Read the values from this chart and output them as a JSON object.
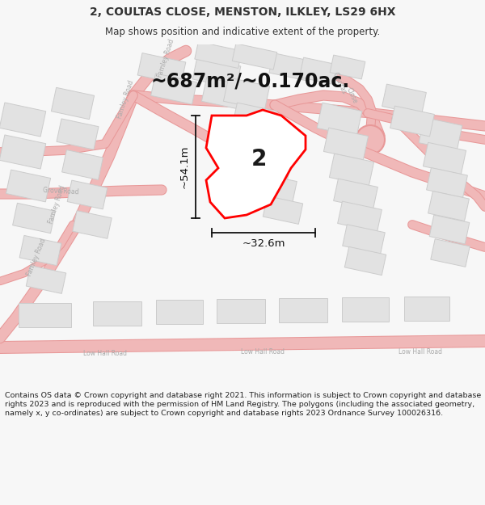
{
  "title": "2, COULTAS CLOSE, MENSTON, ILKLEY, LS29 6HX",
  "subtitle": "Map shows position and indicative extent of the property.",
  "area_text": "~687m²/~0.170ac.",
  "dim_vertical": "~54.1m",
  "dim_horizontal": "~32.6m",
  "plot_label": "2",
  "footer_text": "Contains OS data © Crown copyright and database right 2021. This information is subject to Crown copyright and database rights 2023 and is reproduced with the permission of HM Land Registry. The polygons (including the associated geometry, namely x, y co-ordinates) are subject to Crown copyright and database rights 2023 Ordnance Survey 100026316.",
  "bg_color": "#f7f7f7",
  "map_bg": "#ffffff",
  "road_pink": "#f0b8b8",
  "road_outline": "#e89898",
  "road_center": "#fde8e8",
  "building_fill": "#e2e2e2",
  "building_edge": "#cccccc",
  "plot_fill": "#ffffff",
  "plot_edge": "#ff0000",
  "road_label": "#aaaaaa",
  "dim_color": "#111111",
  "title_color": "#333333",
  "area_color": "#111111",
  "footer_color": "#222222",
  "separator_color": "#cccccc"
}
